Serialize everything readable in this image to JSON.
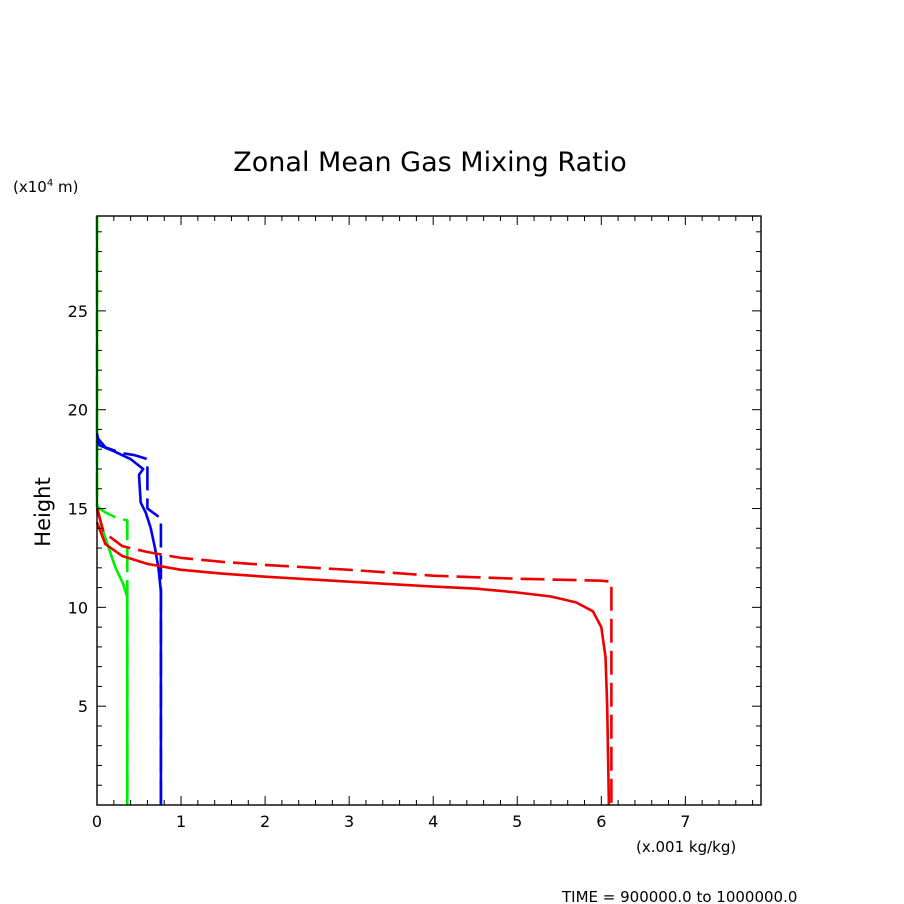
{
  "chart_data": {
    "type": "line",
    "title": "Zonal Mean Gas Mixing Ratio",
    "ylabel": "Height",
    "yunits_prefix": "(x10",
    "yunits_exp": "4",
    "yunits_suffix": " m)",
    "xunits": "(x.001 kg/kg)",
    "xlim": [
      0,
      7.9
    ],
    "ylim": [
      0,
      29.8
    ],
    "x_ticks": [
      0,
      1,
      2,
      3,
      4,
      5,
      6,
      7
    ],
    "y_ticks": [
      5,
      10,
      15,
      20,
      25
    ],
    "x_tick_labels": [
      "0",
      "1",
      "2",
      "3",
      "4",
      "5",
      "6",
      "7"
    ],
    "y_tick_labels": [
      "5",
      "10",
      "15",
      "20",
      "25"
    ],
    "grid": false,
    "footer": "TIME = 900000.0 to 1000000.0",
    "series": [
      {
        "color": "#00ee00",
        "dash": false,
        "points": [
          [
            0,
            29.8
          ],
          [
            0,
            15.2
          ],
          [
            0.06,
            14.0
          ],
          [
            0.14,
            13.0
          ],
          [
            0.22,
            12.0
          ],
          [
            0.31,
            11.2
          ],
          [
            0.36,
            10.5
          ],
          [
            0.36,
            0
          ]
        ]
      },
      {
        "color": "#00ee00",
        "dash": true,
        "points": [
          [
            0,
            29.8
          ],
          [
            0,
            15.1
          ],
          [
            0.1,
            14.8
          ],
          [
            0.25,
            14.5
          ],
          [
            0.36,
            14.4
          ],
          [
            0.36,
            0
          ]
        ]
      },
      {
        "color": "#0000ee",
        "dash": false,
        "points": [
          [
            0,
            18.8
          ],
          [
            0.03,
            18.2
          ],
          [
            0.2,
            17.9
          ],
          [
            0.4,
            17.5
          ],
          [
            0.55,
            17.0
          ],
          [
            0.5,
            16.7
          ],
          [
            0.52,
            15.3
          ],
          [
            0.58,
            14.8
          ],
          [
            0.64,
            14.0
          ],
          [
            0.69,
            13.0
          ],
          [
            0.73,
            12.0
          ],
          [
            0.76,
            10.8
          ],
          [
            0.76,
            0
          ]
        ]
      },
      {
        "color": "#0000ee",
        "dash": true,
        "points": [
          [
            0,
            18.6
          ],
          [
            0.1,
            18.1
          ],
          [
            0.3,
            17.8
          ],
          [
            0.45,
            17.7
          ],
          [
            0.6,
            17.5
          ],
          [
            0.6,
            15.0
          ],
          [
            0.76,
            14.5
          ],
          [
            0.76,
            0
          ]
        ]
      },
      {
        "color": "#ee0000",
        "dash": false,
        "points": [
          [
            0,
            14.3
          ],
          [
            0.1,
            13.2
          ],
          [
            0.3,
            12.6
          ],
          [
            0.6,
            12.2
          ],
          [
            1.0,
            11.9
          ],
          [
            1.5,
            11.7
          ],
          [
            2.0,
            11.55
          ],
          [
            3.0,
            11.3
          ],
          [
            4.0,
            11.05
          ],
          [
            4.5,
            10.95
          ],
          [
            5.0,
            10.75
          ],
          [
            5.4,
            10.55
          ],
          [
            5.7,
            10.25
          ],
          [
            5.9,
            9.8
          ],
          [
            6.0,
            9.0
          ],
          [
            6.05,
            7.5
          ],
          [
            6.07,
            5.0
          ],
          [
            6.09,
            0
          ]
        ]
      },
      {
        "color": "#ee0000",
        "dash": true,
        "points": [
          [
            0,
            15.0
          ],
          [
            0.08,
            13.8
          ],
          [
            0.3,
            13.1
          ],
          [
            0.6,
            12.8
          ],
          [
            1.0,
            12.5
          ],
          [
            1.5,
            12.3
          ],
          [
            2.0,
            12.15
          ],
          [
            3.0,
            11.9
          ],
          [
            4.0,
            11.6
          ],
          [
            5.0,
            11.45
          ],
          [
            6.0,
            11.35
          ],
          [
            6.12,
            11.3
          ],
          [
            6.12,
            8.5
          ],
          [
            6.12,
            0
          ]
        ]
      }
    ]
  }
}
